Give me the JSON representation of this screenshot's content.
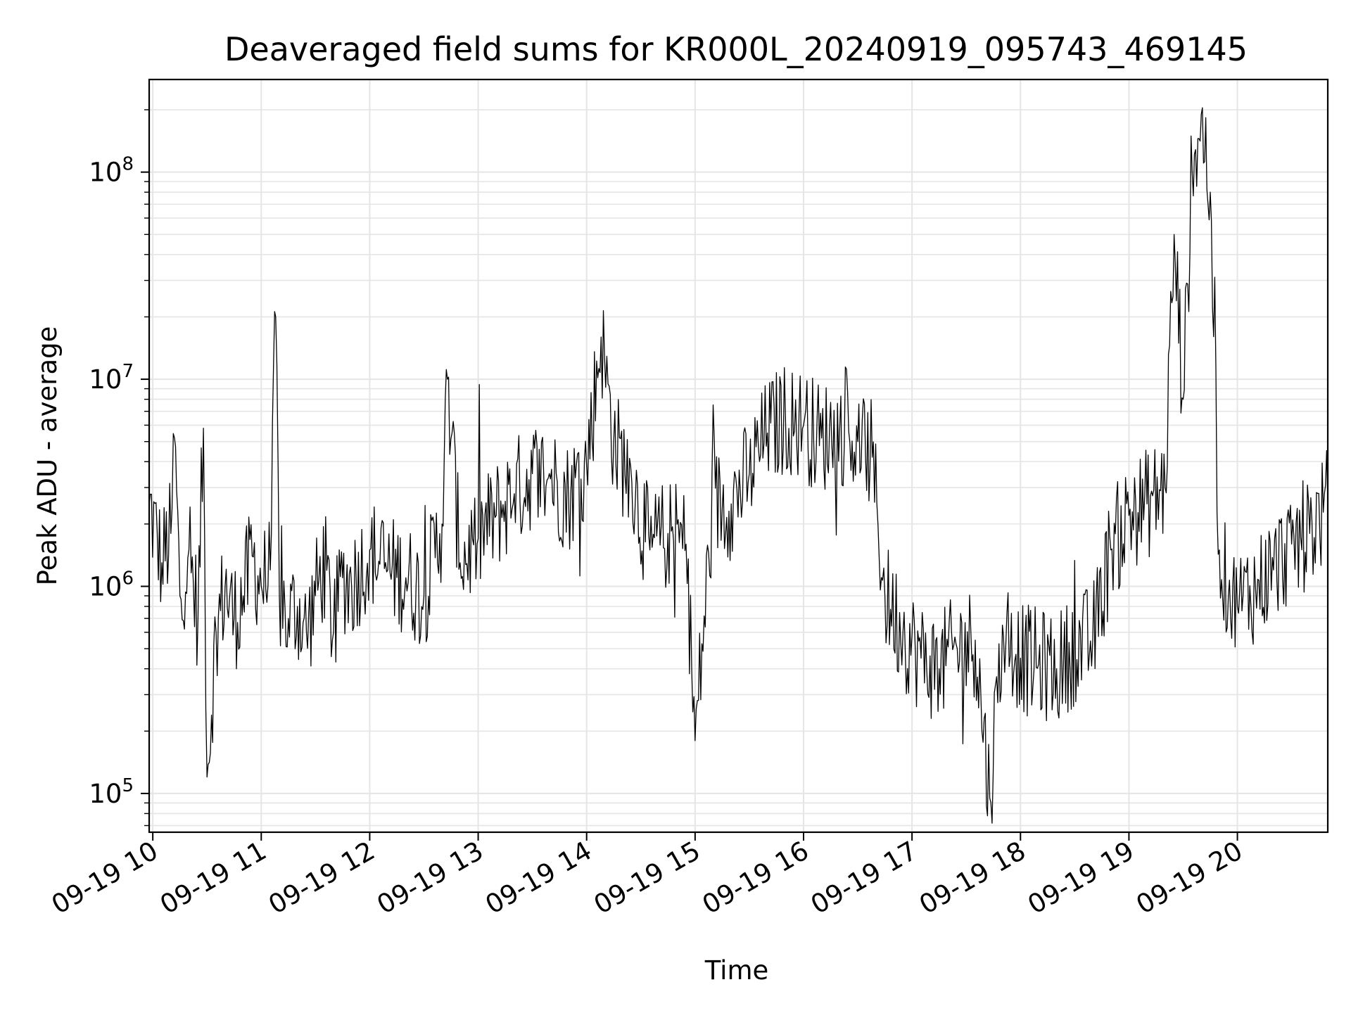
{
  "chart_data": {
    "type": "line",
    "title": "Deaveraged field sums for KR000L_20240919_095743_469145",
    "xlabel": "Time",
    "ylabel": "Peak ADU - average",
    "yscale": "log",
    "grid": true,
    "legend": "none",
    "line_color": "#000000",
    "grid_color": "#e5e5e5",
    "x_range": [
      "2024-09-19 09:58",
      "2024-09-19 20:50"
    ],
    "y_range": [
      65000,
      280000000
    ],
    "x_ticks": [
      {
        "time": "2024-09-19 10:00",
        "label": "09-19 10"
      },
      {
        "time": "2024-09-19 11:00",
        "label": "09-19 11"
      },
      {
        "time": "2024-09-19 12:00",
        "label": "09-19 12"
      },
      {
        "time": "2024-09-19 13:00",
        "label": "09-19 13"
      },
      {
        "time": "2024-09-19 14:00",
        "label": "09-19 14"
      },
      {
        "time": "2024-09-19 15:00",
        "label": "09-19 15"
      },
      {
        "time": "2024-09-19 16:00",
        "label": "09-19 16"
      },
      {
        "time": "2024-09-19 17:00",
        "label": "09-19 17"
      },
      {
        "time": "2024-09-19 18:00",
        "label": "09-19 18"
      },
      {
        "time": "2024-09-19 19:00",
        "label": "09-19 19"
      },
      {
        "time": "2024-09-19 20:00",
        "label": "09-19 20"
      }
    ],
    "y_ticks": [
      {
        "value": 100000,
        "mantissa": "10",
        "exponent": "5"
      },
      {
        "value": 1000000,
        "mantissa": "10",
        "exponent": "6"
      },
      {
        "value": 10000000,
        "mantissa": "10",
        "exponent": "7"
      },
      {
        "value": 100000000,
        "mantissa": "10",
        "exponent": "8"
      }
    ],
    "series": [
      {
        "x": [
          "2024-09-19 09:58",
          "2024-09-19 10:05",
          "2024-09-19 10:10",
          "2024-09-19 10:12",
          "2024-09-19 10:15",
          "2024-09-19 10:20",
          "2024-09-19 10:25",
          "2024-09-19 10:28",
          "2024-09-19 10:30",
          "2024-09-19 10:35",
          "2024-09-19 10:40",
          "2024-09-19 10:45",
          "2024-09-19 10:50",
          "2024-09-19 10:55",
          "2024-09-19 11:00",
          "2024-09-19 11:05",
          "2024-09-19 11:08",
          "2024-09-19 11:10",
          "2024-09-19 11:15",
          "2024-09-19 11:20",
          "2024-09-19 11:25",
          "2024-09-19 11:30",
          "2024-09-19 11:35",
          "2024-09-19 11:40",
          "2024-09-19 11:45",
          "2024-09-19 11:50",
          "2024-09-19 12:00",
          "2024-09-19 12:10",
          "2024-09-19 12:20",
          "2024-09-19 12:30",
          "2024-09-19 12:40",
          "2024-09-19 12:43",
          "2024-09-19 12:50",
          "2024-09-19 13:00",
          "2024-09-19 13:10",
          "2024-09-19 13:20",
          "2024-09-19 13:30",
          "2024-09-19 13:40",
          "2024-09-19 13:50",
          "2024-09-19 14:00",
          "2024-09-19 14:08",
          "2024-09-19 14:15",
          "2024-09-19 14:25",
          "2024-09-19 14:35",
          "2024-09-19 14:45",
          "2024-09-19 14:55",
          "2024-09-19 15:00",
          "2024-09-19 15:10",
          "2024-09-19 15:20",
          "2024-09-19 15:30",
          "2024-09-19 15:40",
          "2024-09-19 15:50",
          "2024-09-19 16:00",
          "2024-09-19 16:10",
          "2024-09-19 16:20",
          "2024-09-19 16:30",
          "2024-09-19 16:38",
          "2024-09-19 16:45",
          "2024-09-19 16:55",
          "2024-09-19 17:05",
          "2024-09-19 17:15",
          "2024-09-19 17:25",
          "2024-09-19 17:35",
          "2024-09-19 17:43",
          "2024-09-19 17:50",
          "2024-09-19 18:00",
          "2024-09-19 18:10",
          "2024-09-19 18:20",
          "2024-09-19 18:30",
          "2024-09-19 18:40",
          "2024-09-19 18:50",
          "2024-09-19 19:00",
          "2024-09-19 19:10",
          "2024-09-19 19:20",
          "2024-09-19 19:25",
          "2024-09-19 19:30",
          "2024-09-19 19:35",
          "2024-09-19 19:40",
          "2024-09-19 19:45",
          "2024-09-19 19:50",
          "2024-09-19 19:55",
          "2024-09-19 20:00",
          "2024-09-19 20:10",
          "2024-09-19 20:20",
          "2024-09-19 20:30",
          "2024-09-19 20:40",
          "2024-09-19 20:50"
        ],
        "y": [
          2500000,
          1300000,
          1800000,
          5200000,
          900000,
          1500000,
          700000,
          5800000,
          120000,
          600000,
          1000000,
          700000,
          900000,
          1400000,
          1000000,
          1200000,
          20000000,
          900000,
          700000,
          800000,
          600000,
          900000,
          1300000,
          600000,
          1100000,
          1000000,
          1500000,
          1200000,
          1100000,
          900000,
          2000000,
          10000000,
          1300000,
          1700000,
          2200000,
          2800000,
          3500000,
          3300000,
          2700000,
          3800000,
          16000000,
          5000000,
          3200000,
          1500000,
          1800000,
          1600000,
          180000,
          2500000,
          2500000,
          3500000,
          5500000,
          6500000,
          6000000,
          5200000,
          5800000,
          5000000,
          4200000,
          900000,
          600000,
          450000,
          400000,
          500000,
          550000,
          95000,
          650000,
          450000,
          420000,
          400000,
          500000,
          550000,
          1500000,
          2200000,
          2500000,
          3000000,
          50000000,
          8000000,
          100000000,
          190000000,
          80000000,
          1500000,
          900000,
          800000,
          1000000,
          1200000,
          1600000,
          1800000,
          2500000
        ],
        "note_noise": ""
      }
    ]
  }
}
